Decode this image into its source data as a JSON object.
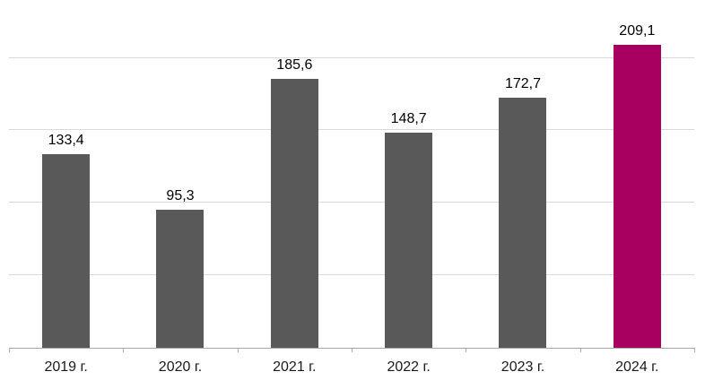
{
  "chart_data": {
    "type": "bar",
    "categories": [
      "2019 г.",
      "2020 г.",
      "2021 г.",
      "2022 г.",
      "2023 г.",
      "2024 г."
    ],
    "values": [
      133.4,
      95.3,
      185.6,
      148.7,
      172.7,
      209.1
    ],
    "value_labels": [
      "133,4",
      "95,3",
      "185,6",
      "148,7",
      "172,7",
      "209,1"
    ],
    "title": "",
    "xlabel": "",
    "ylabel": "",
    "ylim": [
      0,
      240
    ],
    "gridline_step": 50,
    "grid": true,
    "legend": "none",
    "bar_color": "#595959",
    "highlight_color": "#a80060",
    "highlight_index": 5,
    "gridline_color": "#d9d9d9",
    "axis_color": "#a6a6a6",
    "data_label_color": "#000000",
    "axis_label_color": "#1a1a1a"
  }
}
